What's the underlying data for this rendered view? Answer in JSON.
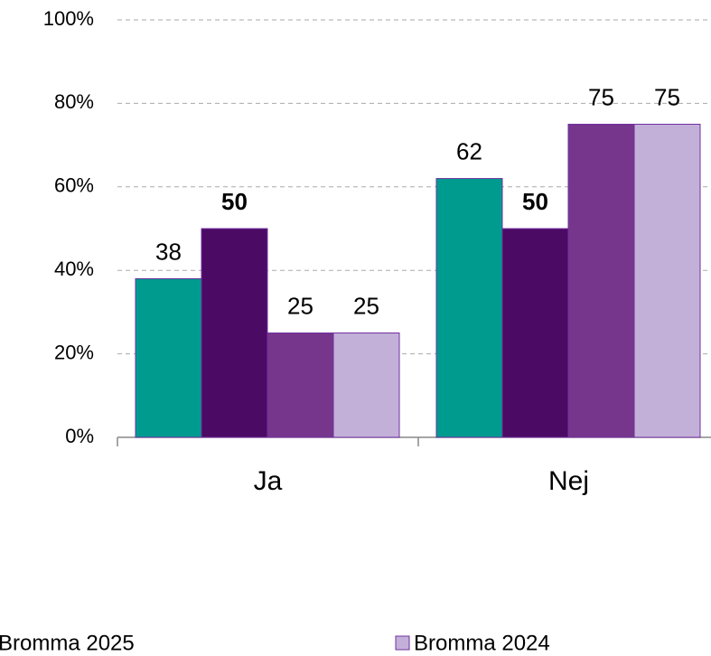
{
  "chart_data": {
    "type": "bar",
    "categories": [
      "Ja",
      "Nej"
    ],
    "series": [
      {
        "color": "#009B8F",
        "values": [
          38,
          62
        ]
      },
      {
        "color": "#4B0A64",
        "values": [
          50,
          50
        ],
        "label_weight": "bold"
      },
      {
        "name": "Bromma 2025",
        "color": "#76368C",
        "values": [
          25,
          75
        ]
      },
      {
        "name": "Bromma 2024",
        "color": "#C3B0D9",
        "values": [
          25,
          75
        ]
      }
    ],
    "ylim": [
      0,
      100
    ],
    "yticks": [
      {
        "value": 0,
        "label": "0%"
      },
      {
        "value": 20,
        "label": "20%"
      },
      {
        "value": 40,
        "label": "40%"
      },
      {
        "value": 60,
        "label": "60%"
      },
      {
        "value": 80,
        "label": "80%"
      },
      {
        "value": 100,
        "label": "100%"
      }
    ],
    "grid": true
  }
}
